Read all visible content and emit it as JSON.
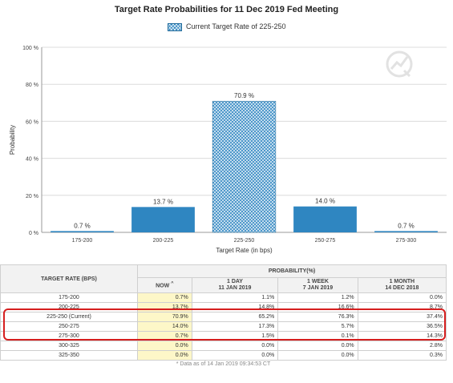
{
  "chart_data": {
    "type": "bar",
    "title": "Target Rate Probabilities for 11 Dec 2019 Fed Meeting",
    "legend": {
      "label": "Current Target Rate of 225-250",
      "placement": "top-center"
    },
    "xlabel": "Target Rate (in bps)",
    "ylabel": "Probability",
    "categories": [
      "175-200",
      "200-225",
      "225-250",
      "250-275",
      "275-300"
    ],
    "values": [
      0.7,
      13.7,
      70.9,
      14.0,
      0.7
    ],
    "data_labels": [
      "0.7 %",
      "13.7 %",
      "70.9 %",
      "14.0 %",
      "0.7 %"
    ],
    "ylim": [
      0,
      100
    ],
    "yticks": [
      0,
      20,
      40,
      60,
      80,
      100
    ],
    "ytick_labels": [
      "0 %",
      "20 %",
      "40 %",
      "60 %",
      "80 %",
      "100 %"
    ],
    "grid": "horizontal",
    "colors": {
      "bar": "#2f86c1",
      "bar_highlight": "#2f86c1"
    }
  },
  "table": {
    "rate_header": "TARGET RATE (BPS)",
    "probability_header": "PROBABILITY(%)",
    "columns": [
      {
        "label": "NOW",
        "sub": ""
      },
      {
        "label": "1 DAY",
        "sub": "11 JAN 2019"
      },
      {
        "label": "1 WEEK",
        "sub": "7 JAN 2019"
      },
      {
        "label": "1 MONTH",
        "sub": "14 DEC 2018"
      }
    ],
    "rows": [
      {
        "rate": "175-200",
        "values": [
          "0.7%",
          "1.1%",
          "1.2%",
          "0.0%"
        ]
      },
      {
        "rate": "200-225",
        "values": [
          "13.7%",
          "14.8%",
          "16.6%",
          "8.7%"
        ]
      },
      {
        "rate": "225-250 (Current)",
        "values": [
          "70.9%",
          "65.2%",
          "76.3%",
          "37.4%"
        ]
      },
      {
        "rate": "250-275",
        "values": [
          "14.0%",
          "17.3%",
          "5.7%",
          "36.5%"
        ]
      },
      {
        "rate": "275-300",
        "values": [
          "0.7%",
          "1.5%",
          "0.1%",
          "14.3%"
        ]
      },
      {
        "rate": "300-325",
        "values": [
          "0.0%",
          "0.0%",
          "0.0%",
          "2.8%"
        ]
      },
      {
        "rate": "325-350",
        "values": [
          "0.0%",
          "0.0%",
          "0.0%",
          "0.3%"
        ]
      }
    ],
    "footnote": "* Data as of 14 Jan 2019 09:34:53 CT"
  },
  "colors": {
    "highlight_outline": "#d61f1f",
    "now_column_bg": "#fdf7c8"
  }
}
